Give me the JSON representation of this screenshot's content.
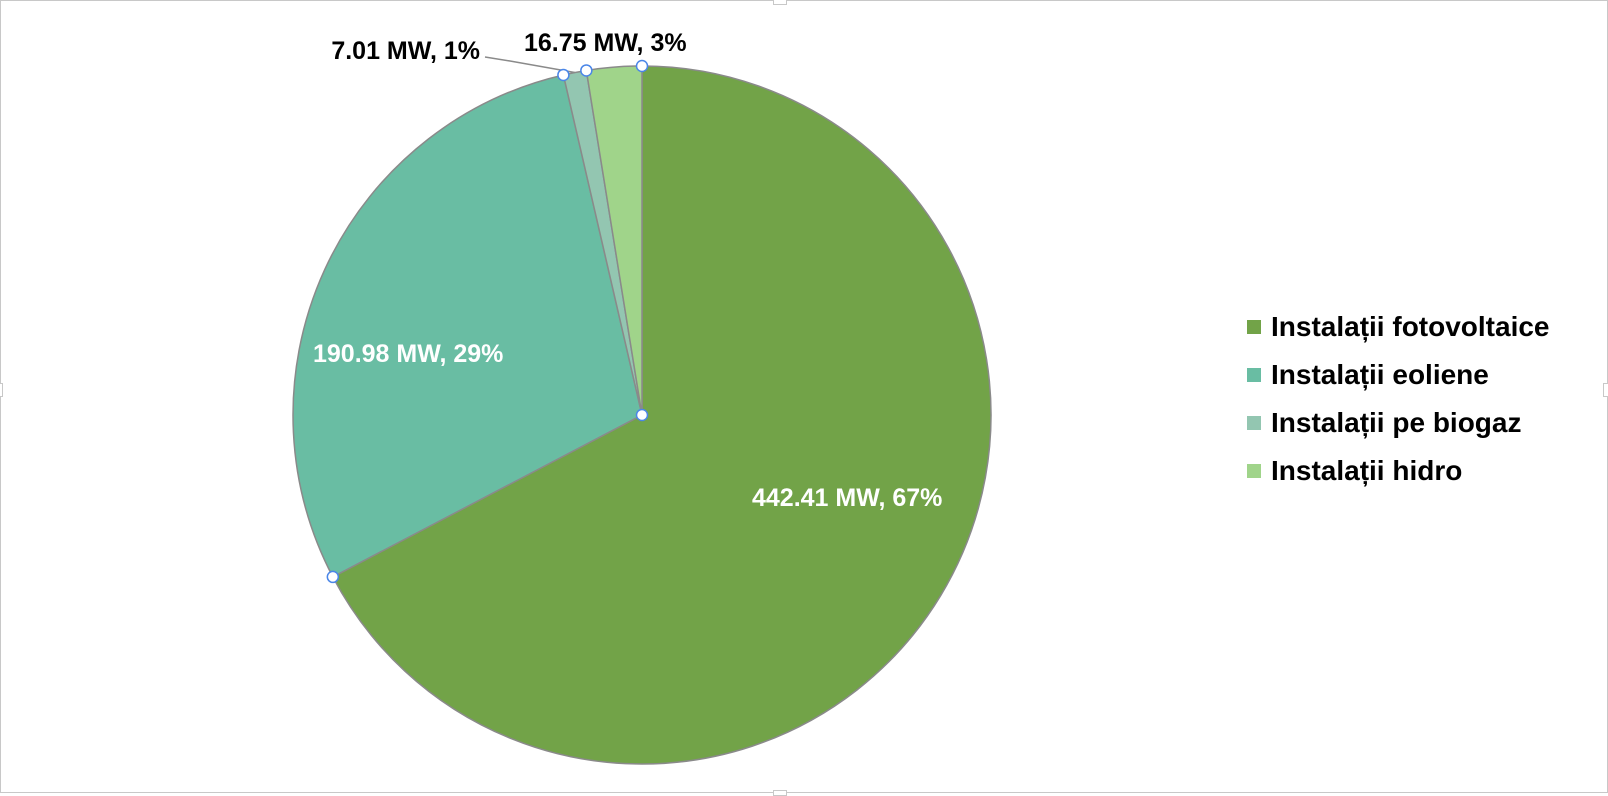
{
  "chart_data": {
    "type": "pie",
    "title": "",
    "unit": "MW",
    "start_angle_deg": 0,
    "direction": "clockwise",
    "legend_position": "right",
    "slices": [
      {
        "name": "Instalații fotovoltaice",
        "value": 442.41,
        "percent": "67%",
        "label": "442.41 MW, 67%",
        "color": "#72a348",
        "label_color": "#ffffff"
      },
      {
        "name": "Instalații eoliene",
        "value": 190.98,
        "percent": "29%",
        "label": "190.98 MW, 29%",
        "color": "#69bda3",
        "label_color": "#ffffff"
      },
      {
        "name": "Instalații pe biogaz",
        "value": 7.01,
        "percent": "1%",
        "label": "7.01 MW, 1%",
        "color": "#93c6b1",
        "label_color": "#000000"
      },
      {
        "name": "Instalații hidro",
        "value": 16.75,
        "percent": "3%",
        "label": "16.75 MW, 3%",
        "color": "#a0d48a",
        "label_color": "#000000"
      }
    ]
  }
}
